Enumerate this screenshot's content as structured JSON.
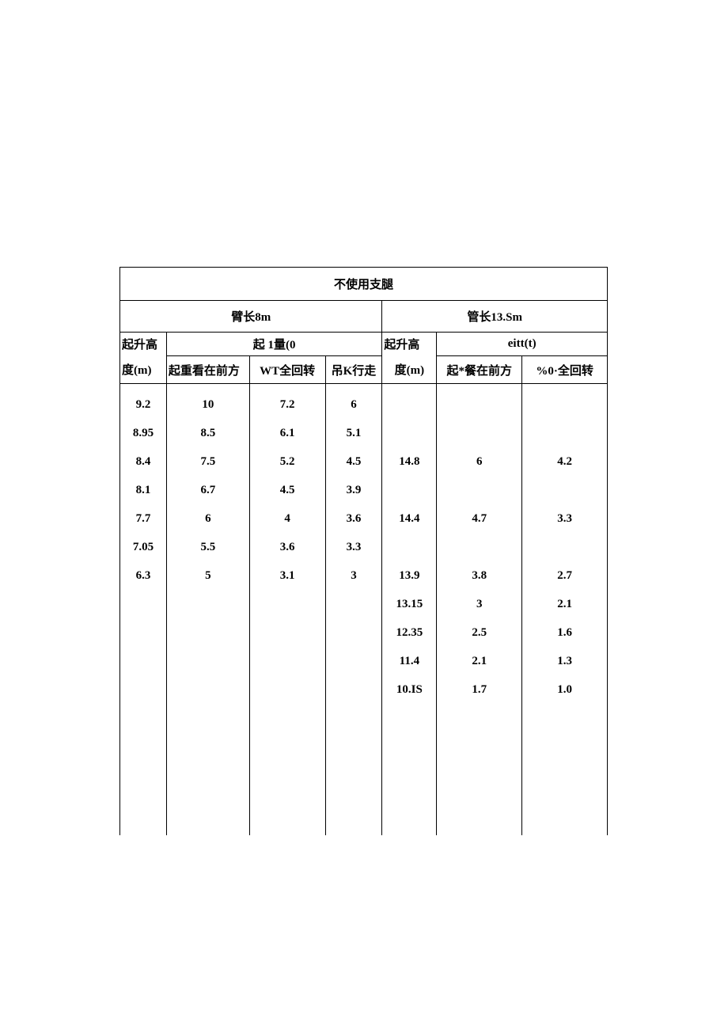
{
  "title": "不使用支腿",
  "left_section": "臂长8m",
  "right_section": "管长13.Sm",
  "left_sub_a": "起升高",
  "left_sub_b": "起   1量(0",
  "right_sub_a": "起升高",
  "right_sub_b": "eitt(t)",
  "hdr_l1": "度(m)",
  "hdr_l2": "起重看在前方",
  "hdr_l3": "WT全回转",
  "hdr_l4": "吊K行走",
  "hdr_r1": "度(m)",
  "hdr_r2": "起*餐在前方",
  "hdr_r3": "%0·全回转",
  "left_c1": [
    "9.2",
    "8.95",
    "8.4",
    "8.1",
    "7.7",
    "7.05",
    "6.3"
  ],
  "left_c2": [
    "10",
    "8.5",
    "7.5",
    "6.7",
    "6",
    "5.5",
    "5"
  ],
  "left_c3": [
    "7.2",
    "6.1",
    "5.2",
    "4.5",
    "4",
    "3.6",
    "3.1"
  ],
  "left_c4": [
    "6",
    "5.1",
    "4.5",
    "3.9",
    "3.6",
    "3.3",
    "3"
  ],
  "right_c1": [
    "",
    "",
    "14.8",
    "",
    "14.4",
    "",
    "13.9",
    "13.15",
    "12.35",
    "11.4",
    "10.IS"
  ],
  "right_c2": [
    "",
    "",
    "6",
    "",
    "4.7",
    "",
    "3.8",
    "3",
    "2.5",
    "2.1",
    "1.7"
  ],
  "right_c3": [
    "",
    "",
    "4.2",
    "",
    "3.3",
    "",
    "2.7",
    "2.1",
    "1.6",
    "1.3",
    "1.0"
  ],
  "colors": {
    "background": "#ffffff",
    "text": "#000000",
    "border": "#000000"
  },
  "font": {
    "family": "SimSun / Times New Roman",
    "size_pt": 11,
    "weight": "bold"
  }
}
